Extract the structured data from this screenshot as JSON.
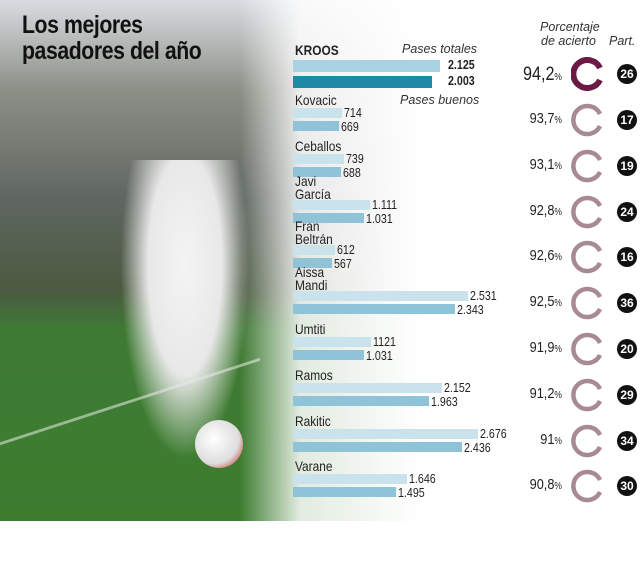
{
  "title_line1": "Los mejores",
  "title_line2": "pasadores del año",
  "headers": {
    "totales": "Pases totales",
    "buenos": "Pases buenos",
    "porcentaje1": "Porcentaje",
    "porcentaje2": "de acierto",
    "partidos": "Part."
  },
  "colors": {
    "total_bar": "#c9e2ec",
    "good_bar": "#8fc4d8",
    "kroos_total": "#a8d2e2",
    "kroos_good": "#1e8aa6",
    "kroos_gauge": "#6b1a45",
    "gauge": "#a88a95"
  },
  "chart_data": {
    "type": "bar",
    "series": [
      {
        "name": "Pases totales"
      },
      {
        "name": "Pases buenos"
      }
    ],
    "rows": [
      {
        "player": "KROOS",
        "total": 2125,
        "total_label": "2.125",
        "good": 2003,
        "good_label": "2.003",
        "pct": 94.2,
        "pct_label": "94,2",
        "matches": "26"
      },
      {
        "player": "Kovacic",
        "total": 714,
        "total_label": "714",
        "good": 669,
        "good_label": "669",
        "pct": 93.7,
        "pct_label": "93,7",
        "matches": "17"
      },
      {
        "player": "Ceballos",
        "total": 739,
        "total_label": "739",
        "good": 688,
        "good_label": "688",
        "pct": 93.1,
        "pct_label": "93,1",
        "matches": "19"
      },
      {
        "player": "Javi García",
        "total": 1111,
        "total_label": "1.111",
        "good": 1031,
        "good_label": "1.031",
        "pct": 92.8,
        "pct_label": "92,8",
        "matches": "24"
      },
      {
        "player": "Fran Beltrán",
        "total": 612,
        "total_label": "612",
        "good": 567,
        "good_label": "567",
        "pct": 92.6,
        "pct_label": "92,6",
        "matches": "16"
      },
      {
        "player": "Aissa Mandi",
        "total": 2531,
        "total_label": "2.531",
        "good": 2343,
        "good_label": "2.343",
        "pct": 92.5,
        "pct_label": "92,5",
        "matches": "36"
      },
      {
        "player": "Umtiti",
        "total": 1121,
        "total_label": "1121",
        "good": 1031,
        "good_label": "1.031",
        "pct": 91.9,
        "pct_label": "91,9",
        "matches": "20"
      },
      {
        "player": "Ramos",
        "total": 2152,
        "total_label": "2.152",
        "good": 1963,
        "good_label": "1.963",
        "pct": 91.2,
        "pct_label": "91,2",
        "matches": "29"
      },
      {
        "player": "Rakitic",
        "total": 2676,
        "total_label": "2.676",
        "good": 2436,
        "good_label": "2.436",
        "pct": 91,
        "pct_label": "91",
        "matches": "34"
      },
      {
        "player": "Varane",
        "total": 1646,
        "total_label": "1.646",
        "good": 1495,
        "good_label": "1.495",
        "pct": 90.8,
        "pct_label": "90,8",
        "matches": "30"
      }
    ]
  }
}
